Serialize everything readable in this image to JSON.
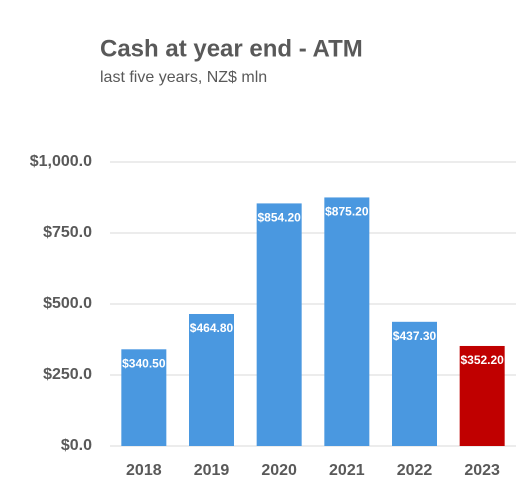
{
  "chart_data": {
    "type": "bar",
    "title": "Cash at year end - ATM",
    "subtitle": "last five years, NZ$ mln",
    "categories": [
      "2018",
      "2019",
      "2020",
      "2021",
      "2022",
      "2023"
    ],
    "values": [
      340.5,
      464.8,
      854.2,
      875.2,
      437.3,
      352.2
    ],
    "value_labels": [
      "$340.50",
      "$464.80",
      "$854.20",
      "$875.20",
      "$437.30",
      "$352.20"
    ],
    "colors": [
      "#4a98e0",
      "#4a98e0",
      "#4a98e0",
      "#4a98e0",
      "#4a98e0",
      "#c00000"
    ],
    "ylim": [
      0,
      1000
    ],
    "yticks": [
      {
        "value": 0,
        "label": "$0.0"
      },
      {
        "value": 250,
        "label": "$250.0"
      },
      {
        "value": 500,
        "label": "$500.0"
      },
      {
        "value": 750,
        "label": "$750.0"
      },
      {
        "value": 1000,
        "label": "$1,000.0"
      }
    ],
    "grid": true
  }
}
